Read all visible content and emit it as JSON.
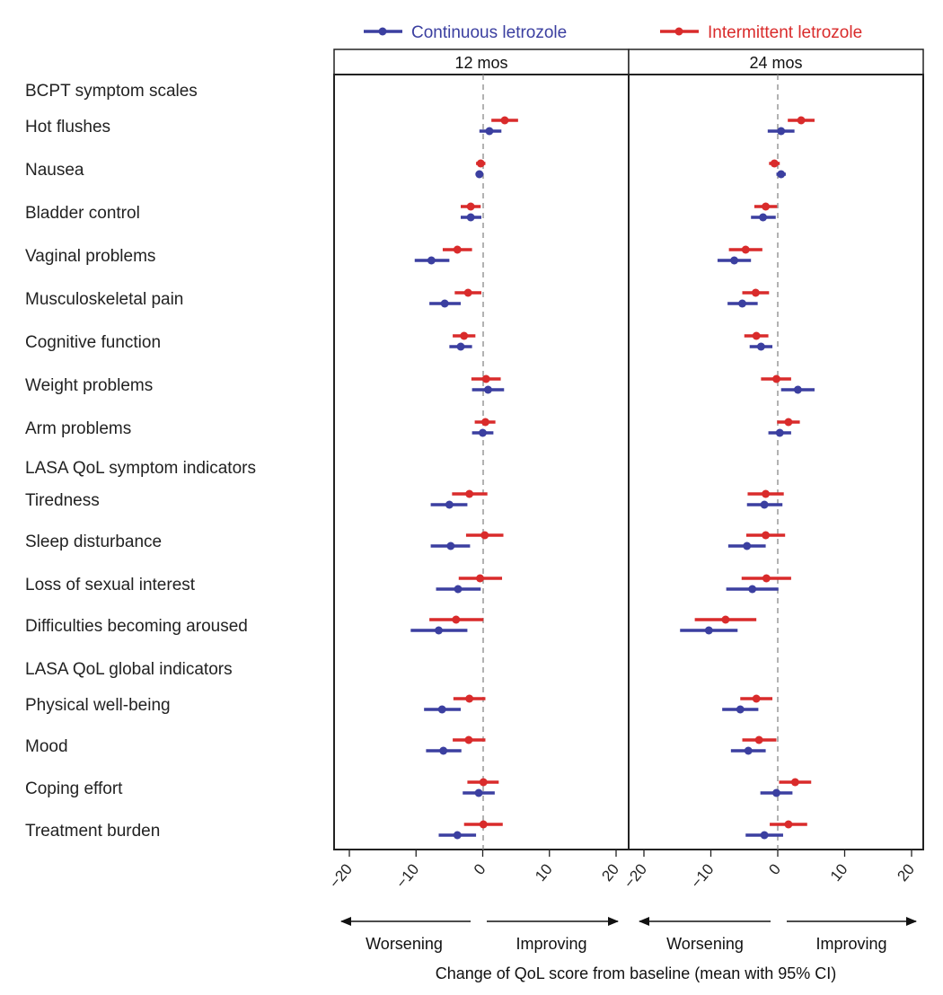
{
  "chart_data": {
    "type": "forest",
    "xlabel": "Change of QoL score from baseline (mean with 95% CI)",
    "xlim": [
      -20,
      20
    ],
    "ticks": [
      -20,
      -10,
      0,
      10,
      20
    ],
    "direction_labels": {
      "worsening": "Worsening",
      "improving": "Improving"
    },
    "legend_position": "top",
    "series": [
      {
        "key": "continuous",
        "name": "Continuous letrozole",
        "color": "#3b3fa0"
      },
      {
        "key": "intermittent",
        "name": "Intermittent letrozole",
        "color": "#d92b2b"
      }
    ],
    "panels": [
      "12 mos",
      "24 mos"
    ],
    "rows": [
      {
        "label": "BCPT symptom scales",
        "header": true
      },
      {
        "label": "Hot flushes",
        "data": [
          {
            "continuous": [
              1.0,
              -0.5,
              2.8
            ],
            "intermittent": [
              3.3,
              1.3,
              5.3
            ]
          },
          {
            "continuous": [
              0.5,
              -1.5,
              2.5
            ],
            "intermittent": [
              3.5,
              1.5,
              5.5
            ]
          }
        ]
      },
      {
        "label": "Nausea",
        "data": [
          {
            "continuous": [
              -0.5,
              -1.0,
              0.0
            ],
            "intermittent": [
              -0.3,
              -1.0,
              0.4
            ]
          },
          {
            "continuous": [
              0.5,
              -0.2,
              1.2
            ],
            "intermittent": [
              -0.5,
              -1.3,
              0.3
            ]
          }
        ]
      },
      {
        "label": "Bladder control",
        "data": [
          {
            "continuous": [
              -1.8,
              -3.3,
              -0.2
            ],
            "intermittent": [
              -1.8,
              -3.3,
              -0.3
            ]
          },
          {
            "continuous": [
              -2.2,
              -4.0,
              -0.3
            ],
            "intermittent": [
              -1.8,
              -3.5,
              -0.1
            ]
          }
        ]
      },
      {
        "label": "Vaginal problems",
        "data": [
          {
            "continuous": [
              -7.7,
              -10.2,
              -5.0
            ],
            "intermittent": [
              -3.8,
              -6.0,
              -1.6
            ]
          },
          {
            "continuous": [
              -6.5,
              -9.0,
              -4.0
            ],
            "intermittent": [
              -4.8,
              -7.3,
              -2.3
            ]
          }
        ]
      },
      {
        "label": "Musculoskeletal pain",
        "data": [
          {
            "continuous": [
              -5.7,
              -8.0,
              -3.3
            ],
            "intermittent": [
              -2.2,
              -4.2,
              -0.2
            ]
          },
          {
            "continuous": [
              -5.3,
              -7.5,
              -3.0
            ],
            "intermittent": [
              -3.3,
              -5.3,
              -1.3
            ]
          }
        ]
      },
      {
        "label": "Cognitive function",
        "data": [
          {
            "continuous": [
              -3.3,
              -5.0,
              -1.6
            ],
            "intermittent": [
              -2.8,
              -4.5,
              -1.1
            ]
          },
          {
            "continuous": [
              -2.5,
              -4.2,
              -0.8
            ],
            "intermittent": [
              -3.2,
              -5.0,
              -1.4
            ]
          }
        ]
      },
      {
        "label": "Weight problems",
        "data": [
          {
            "continuous": [
              0.8,
              -1.6,
              3.2
            ],
            "intermittent": [
              0.5,
              -1.7,
              2.7
            ]
          },
          {
            "continuous": [
              3.0,
              0.5,
              5.5
            ],
            "intermittent": [
              -0.2,
              -2.5,
              2.0
            ]
          }
        ]
      },
      {
        "label": "Arm problems",
        "data": [
          {
            "continuous": [
              0.0,
              -1.6,
              1.6
            ],
            "intermittent": [
              0.4,
              -1.2,
              1.9
            ]
          },
          {
            "continuous": [
              0.3,
              -1.4,
              2.0
            ],
            "intermittent": [
              1.6,
              -0.1,
              3.3
            ]
          }
        ]
      },
      {
        "label": "LASA QoL symptom indicators",
        "header": true
      },
      {
        "label": "Tiredness",
        "data": [
          {
            "continuous": [
              -5.0,
              -7.8,
              -2.3
            ],
            "intermittent": [
              -2.0,
              -4.6,
              0.7
            ]
          },
          {
            "continuous": [
              -2.0,
              -4.6,
              0.7
            ],
            "intermittent": [
              -1.8,
              -4.5,
              0.9
            ]
          }
        ]
      },
      {
        "label": "Sleep disturbance",
        "data": [
          {
            "continuous": [
              -4.8,
              -7.8,
              -1.9
            ],
            "intermittent": [
              0.3,
              -2.5,
              3.1
            ]
          },
          {
            "continuous": [
              -4.6,
              -7.4,
              -1.8
            ],
            "intermittent": [
              -1.8,
              -4.7,
              1.1
            ]
          }
        ]
      },
      {
        "label": "Loss of sexual interest",
        "data": [
          {
            "continuous": [
              -3.7,
              -7.0,
              -0.3
            ],
            "intermittent": [
              -0.4,
              -3.6,
              2.9
            ]
          },
          {
            "continuous": [
              -3.8,
              -7.7,
              0.1
            ],
            "intermittent": [
              -1.7,
              -5.4,
              2.0
            ]
          }
        ]
      },
      {
        "label": "Difficulties becoming aroused",
        "data": [
          {
            "continuous": [
              -6.6,
              -10.8,
              -2.3
            ],
            "intermittent": [
              -4.0,
              -8.0,
              0.1
            ]
          },
          {
            "continuous": [
              -10.3,
              -14.6,
              -6.0
            ],
            "intermittent": [
              -7.8,
              -12.4,
              -3.2
            ]
          }
        ]
      },
      {
        "label": "LASA QoL global indicators",
        "header": true
      },
      {
        "label": "Physical well-being",
        "data": [
          {
            "continuous": [
              -6.1,
              -8.8,
              -3.3
            ],
            "intermittent": [
              -2.0,
              -4.4,
              0.4
            ]
          },
          {
            "continuous": [
              -5.6,
              -8.3,
              -2.9
            ],
            "intermittent": [
              -3.2,
              -5.6,
              -0.8
            ]
          }
        ]
      },
      {
        "label": "Mood",
        "data": [
          {
            "continuous": [
              -5.9,
              -8.5,
              -3.2
            ],
            "intermittent": [
              -2.1,
              -4.5,
              0.4
            ]
          },
          {
            "continuous": [
              -4.4,
              -7.0,
              -1.8
            ],
            "intermittent": [
              -2.8,
              -5.3,
              -0.2
            ]
          }
        ]
      },
      {
        "label": "Coping effort",
        "data": [
          {
            "continuous": [
              -0.6,
              -3.0,
              1.8
            ],
            "intermittent": [
              0.1,
              -2.3,
              2.4
            ]
          },
          {
            "continuous": [
              -0.2,
              -2.6,
              2.2
            ],
            "intermittent": [
              2.6,
              0.2,
              5.0
            ]
          }
        ]
      },
      {
        "label": "Treatment burden",
        "data": [
          {
            "continuous": [
              -3.8,
              -6.6,
              -1.0
            ],
            "intermittent": [
              0.1,
              -2.8,
              3.0
            ]
          },
          {
            "continuous": [
              -2.0,
              -4.8,
              0.8
            ],
            "intermittent": [
              1.6,
              -1.2,
              4.4
            ]
          }
        ]
      }
    ]
  }
}
